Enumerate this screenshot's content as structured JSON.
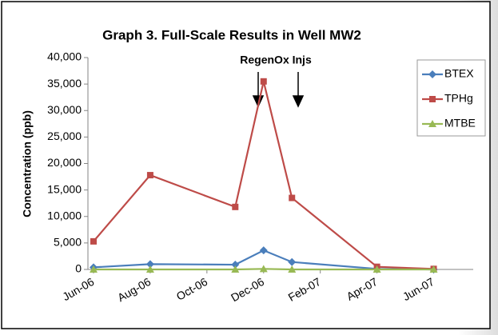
{
  "chart_data": {
    "type": "line",
    "title": "Graph 3. Full-Scale Results in Well MW2",
    "y_label": "Concentration (ppb)",
    "annotation": "RegenOx Injs",
    "x": [
      "2006-06",
      "2006-08",
      "2006-11",
      "2006-12",
      "2007-01",
      "2007-04",
      "2007-06"
    ],
    "series": [
      {
        "name": "BTEX",
        "color": "#4a7ebb",
        "marker": "diamond",
        "values": [
          400,
          1000,
          900,
          3600,
          1400,
          100,
          0
        ]
      },
      {
        "name": "TPHg",
        "color": "#be4b48",
        "marker": "square",
        "values": [
          5300,
          17800,
          11800,
          35500,
          13500,
          500,
          100
        ]
      },
      {
        "name": "MTBE",
        "color": "#98b954",
        "marker": "triangle",
        "values": [
          0,
          0,
          0,
          100,
          0,
          0,
          0
        ]
      }
    ],
    "xlim": [
      "2006-06",
      "2007-07"
    ],
    "xticks": [
      {
        "value": "2006-06",
        "label": "Jun-06"
      },
      {
        "value": "2006-08",
        "label": "Aug-06"
      },
      {
        "value": "2006-10",
        "label": "Oct-06"
      },
      {
        "value": "2006-12",
        "label": "Dec-06"
      },
      {
        "value": "2007-02",
        "label": "Feb-07"
      },
      {
        "value": "2007-04",
        "label": "Apr-07"
      },
      {
        "value": "2007-06",
        "label": "Jun-07"
      }
    ],
    "ylim": [
      0,
      40000
    ],
    "yticks": [
      0,
      {
        "value": 5000,
        "label": "5,000"
      },
      {
        "value": 10000,
        "label": "10,000"
      },
      {
        "value": 15000,
        "label": "15,000"
      },
      {
        "value": 20000,
        "label": "20,000"
      },
      {
        "value": 25000,
        "label": "25,000"
      },
      {
        "value": 30000,
        "label": "30,000"
      },
      {
        "value": 35000,
        "label": "35,000"
      },
      {
        "value": 40000,
        "label": "40,000"
      }
    ],
    "legend": "right"
  }
}
